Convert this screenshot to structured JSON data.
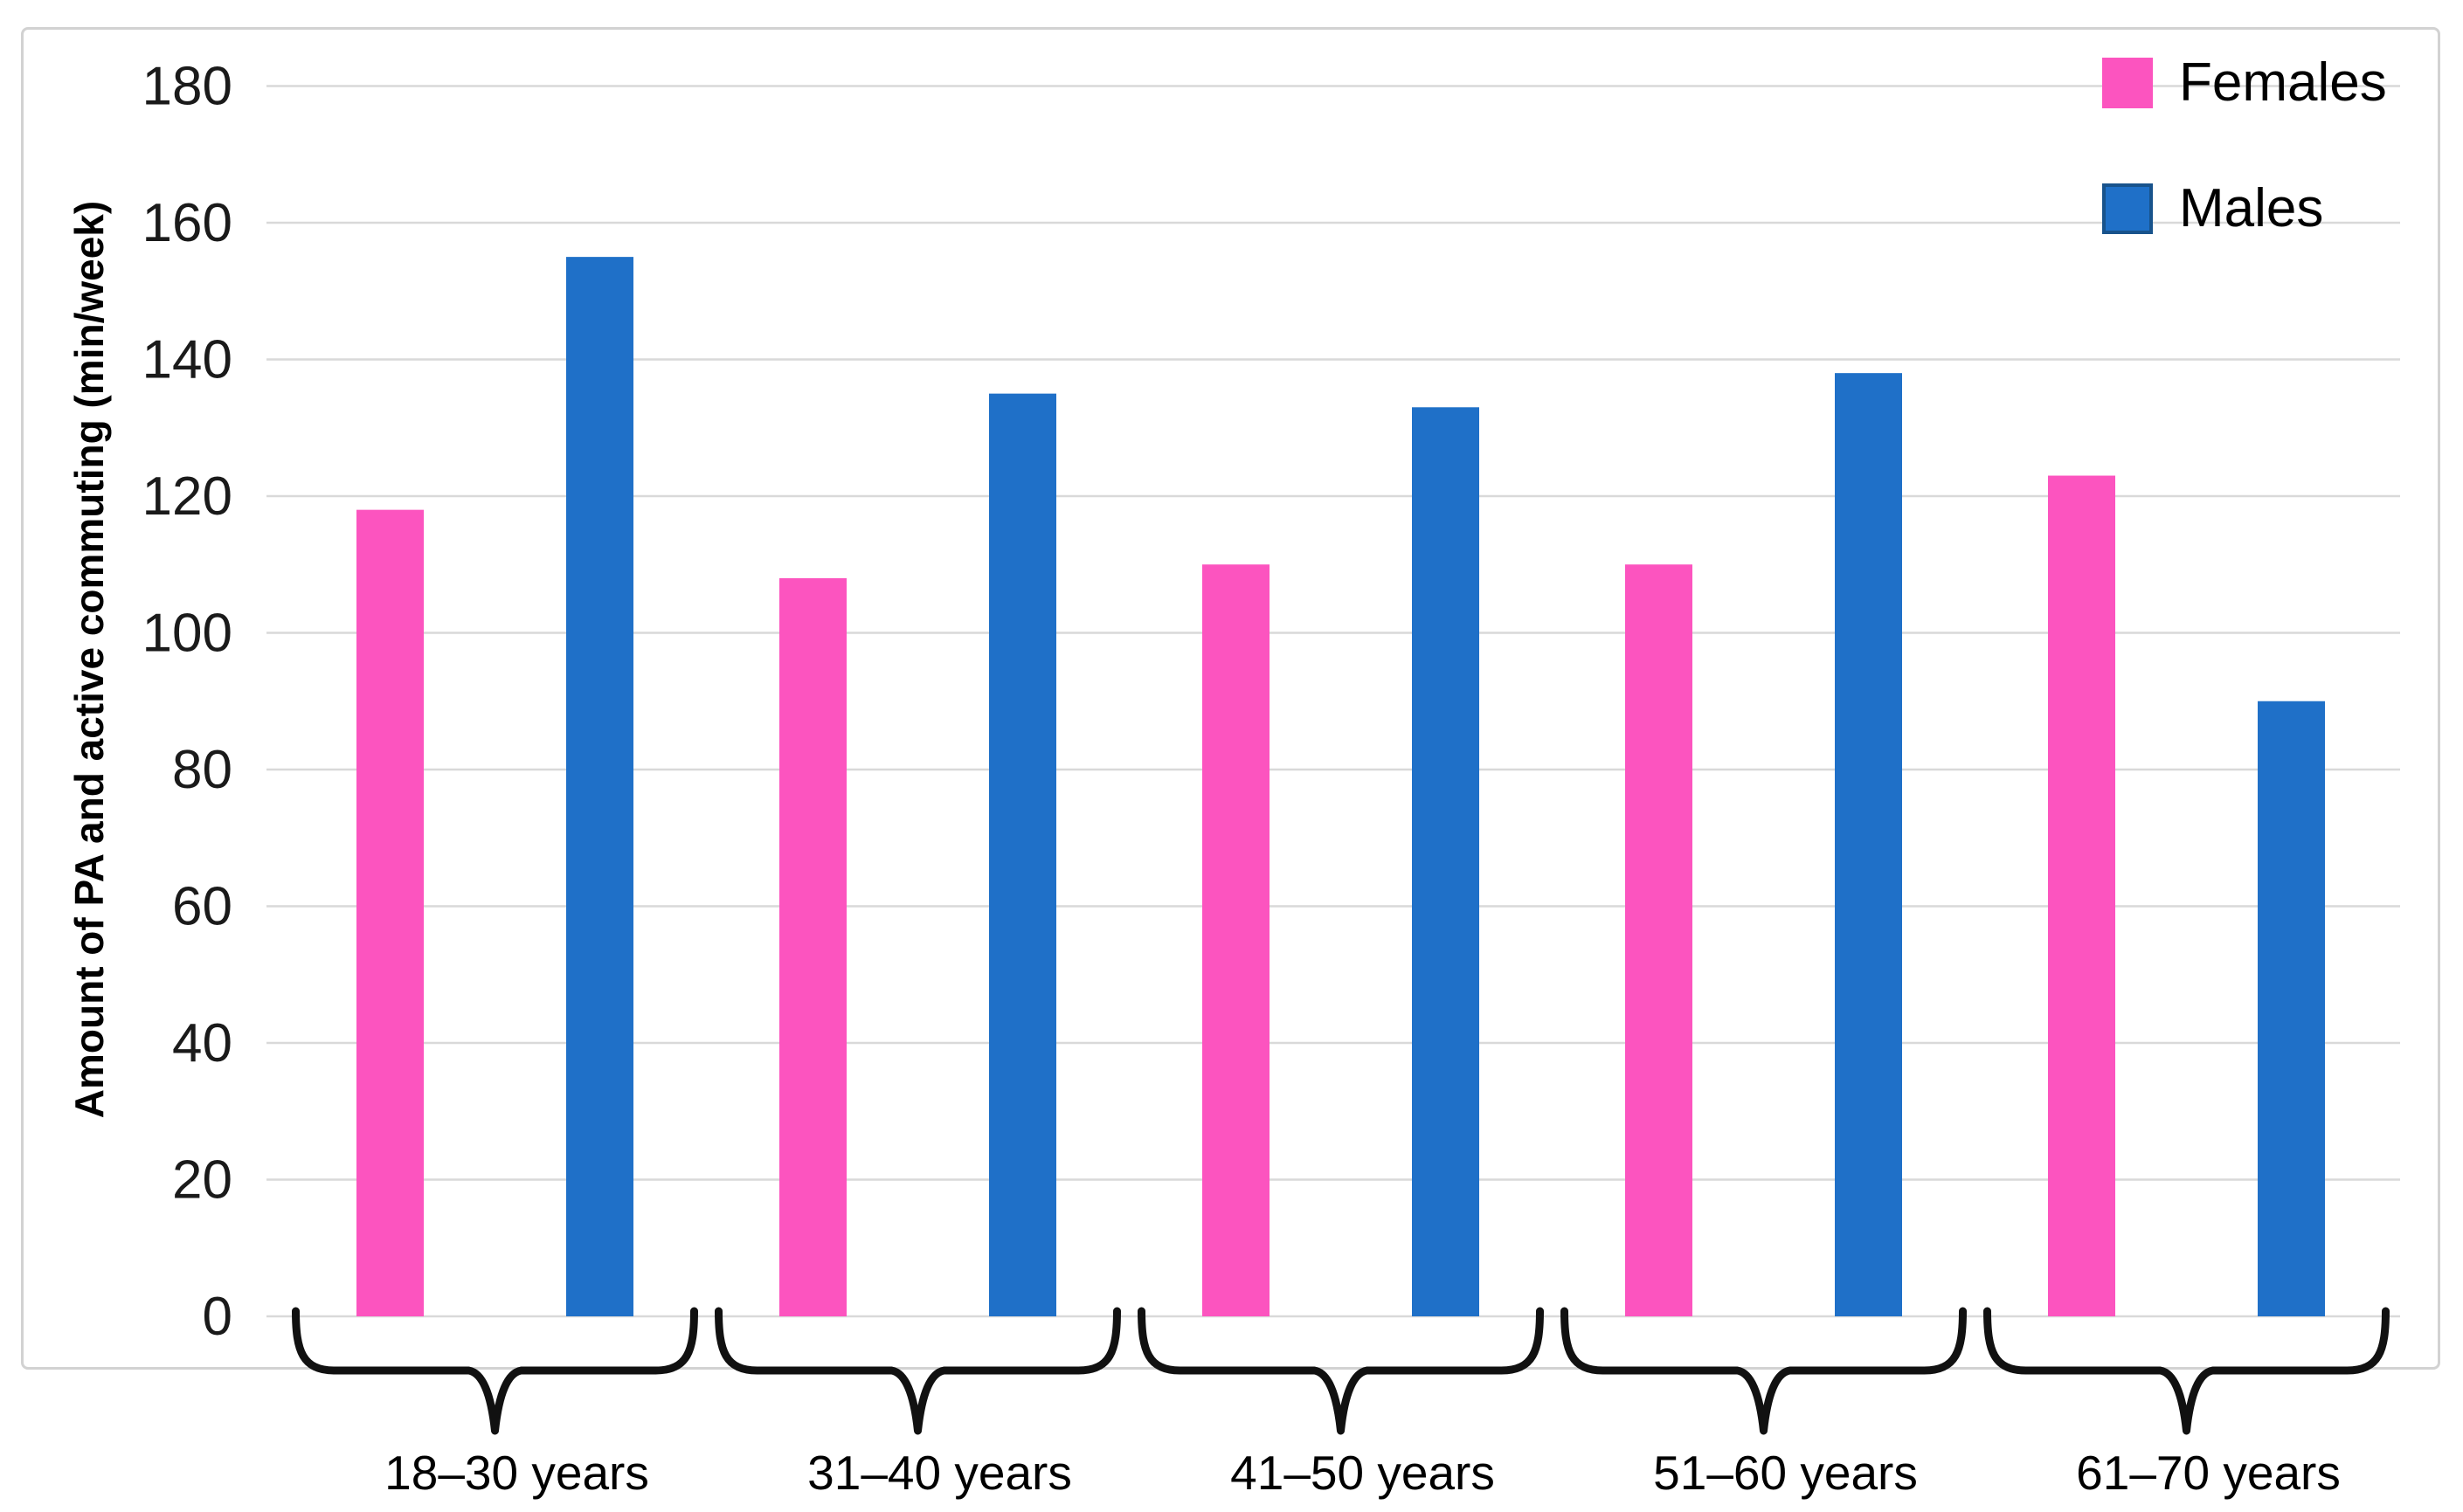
{
  "chart_data": {
    "type": "bar",
    "title": "",
    "ylabel": "Amount of PA and active commuting (min/week)",
    "xlabel": "",
    "categories": [
      "18–30 years",
      "31–40 years",
      "41–50 years",
      "51–60 years",
      "61–70 years"
    ],
    "series": [
      {
        "name": "Females",
        "color": "#FC54BF",
        "values": [
          118,
          108,
          110,
          110,
          123
        ]
      },
      {
        "name": "Males",
        "color": "#1F70C8",
        "border_color": "#18538C",
        "values": [
          155,
          135,
          133,
          138,
          90
        ]
      }
    ],
    "ylim": [
      0,
      180
    ],
    "yticks": [
      0,
      20,
      40,
      60,
      80,
      100,
      120,
      140,
      160,
      180
    ],
    "grid": "horizontal",
    "legend_position": "top-right",
    "group_brackets": "curly-brace-under-each-group"
  },
  "colors": {
    "gridline": "#D9D9D9",
    "frame_border": "#D2D2D2",
    "tick_text": "#1A1A1A",
    "category_text": "#000000",
    "brace": "#111111"
  }
}
